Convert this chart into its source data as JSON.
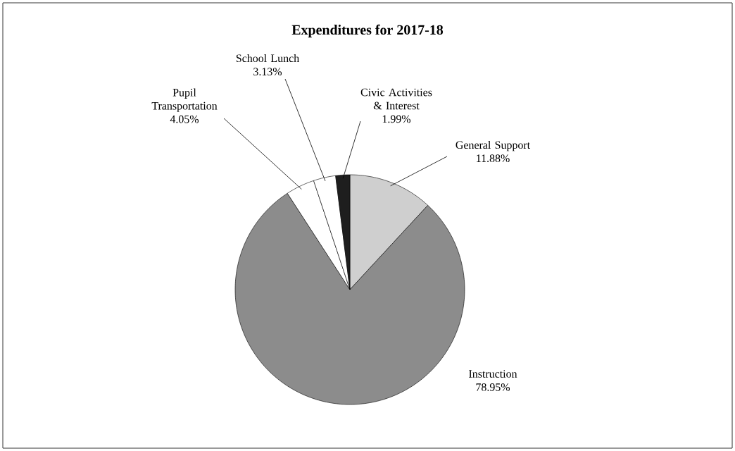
{
  "chart_data": {
    "type": "pie",
    "title": "Expenditures for 2017-18",
    "categories": [
      "General Support",
      "Instruction",
      "Pupil Transportation",
      "School Lunch",
      "Civic Activities & Interest"
    ],
    "values": [
      11.88,
      78.95,
      4.05,
      3.13,
      1.99
    ],
    "colors": [
      "#cfcfcf",
      "#8c8c8c",
      "#ffffff",
      "#ffffff",
      "#1e1e1e"
    ],
    "value_labels": [
      "11.88%",
      "78.95%",
      "4.05%",
      "3.13%",
      "1.99%"
    ]
  }
}
